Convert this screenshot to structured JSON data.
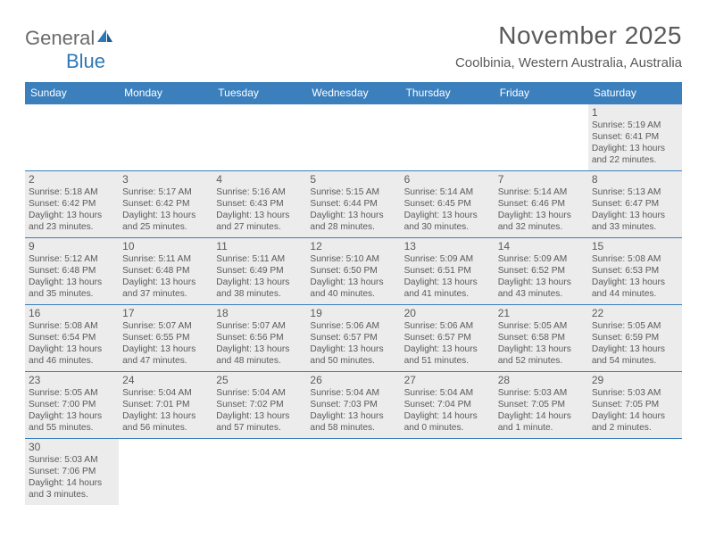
{
  "logo": {
    "general": "General",
    "blue": "Blue"
  },
  "title": "November 2025",
  "location": "Coolbinia, Western Australia, Australia",
  "colors": {
    "header_bg": "#3b7fbd",
    "header_text": "#ffffff",
    "body_text": "#5a5a5a",
    "shaded_bg": "#ececec",
    "rule": "#3b7fbd",
    "logo_gray": "#6a6a6a",
    "logo_blue": "#2f78b7"
  },
  "weekdays": [
    "Sunday",
    "Monday",
    "Tuesday",
    "Wednesday",
    "Thursday",
    "Friday",
    "Saturday"
  ],
  "weeks": [
    [
      null,
      null,
      null,
      null,
      null,
      null,
      {
        "n": "1",
        "sr": "Sunrise: 5:19 AM",
        "ss": "Sunset: 6:41 PM",
        "d1": "Daylight: 13 hours",
        "d2": "and 22 minutes."
      }
    ],
    [
      {
        "n": "2",
        "sr": "Sunrise: 5:18 AM",
        "ss": "Sunset: 6:42 PM",
        "d1": "Daylight: 13 hours",
        "d2": "and 23 minutes."
      },
      {
        "n": "3",
        "sr": "Sunrise: 5:17 AM",
        "ss": "Sunset: 6:42 PM",
        "d1": "Daylight: 13 hours",
        "d2": "and 25 minutes."
      },
      {
        "n": "4",
        "sr": "Sunrise: 5:16 AM",
        "ss": "Sunset: 6:43 PM",
        "d1": "Daylight: 13 hours",
        "d2": "and 27 minutes."
      },
      {
        "n": "5",
        "sr": "Sunrise: 5:15 AM",
        "ss": "Sunset: 6:44 PM",
        "d1": "Daylight: 13 hours",
        "d2": "and 28 minutes."
      },
      {
        "n": "6",
        "sr": "Sunrise: 5:14 AM",
        "ss": "Sunset: 6:45 PM",
        "d1": "Daylight: 13 hours",
        "d2": "and 30 minutes."
      },
      {
        "n": "7",
        "sr": "Sunrise: 5:14 AM",
        "ss": "Sunset: 6:46 PM",
        "d1": "Daylight: 13 hours",
        "d2": "and 32 minutes."
      },
      {
        "n": "8",
        "sr": "Sunrise: 5:13 AM",
        "ss": "Sunset: 6:47 PM",
        "d1": "Daylight: 13 hours",
        "d2": "and 33 minutes."
      }
    ],
    [
      {
        "n": "9",
        "sr": "Sunrise: 5:12 AM",
        "ss": "Sunset: 6:48 PM",
        "d1": "Daylight: 13 hours",
        "d2": "and 35 minutes."
      },
      {
        "n": "10",
        "sr": "Sunrise: 5:11 AM",
        "ss": "Sunset: 6:48 PM",
        "d1": "Daylight: 13 hours",
        "d2": "and 37 minutes."
      },
      {
        "n": "11",
        "sr": "Sunrise: 5:11 AM",
        "ss": "Sunset: 6:49 PM",
        "d1": "Daylight: 13 hours",
        "d2": "and 38 minutes."
      },
      {
        "n": "12",
        "sr": "Sunrise: 5:10 AM",
        "ss": "Sunset: 6:50 PM",
        "d1": "Daylight: 13 hours",
        "d2": "and 40 minutes."
      },
      {
        "n": "13",
        "sr": "Sunrise: 5:09 AM",
        "ss": "Sunset: 6:51 PM",
        "d1": "Daylight: 13 hours",
        "d2": "and 41 minutes."
      },
      {
        "n": "14",
        "sr": "Sunrise: 5:09 AM",
        "ss": "Sunset: 6:52 PM",
        "d1": "Daylight: 13 hours",
        "d2": "and 43 minutes."
      },
      {
        "n": "15",
        "sr": "Sunrise: 5:08 AM",
        "ss": "Sunset: 6:53 PM",
        "d1": "Daylight: 13 hours",
        "d2": "and 44 minutes."
      }
    ],
    [
      {
        "n": "16",
        "sr": "Sunrise: 5:08 AM",
        "ss": "Sunset: 6:54 PM",
        "d1": "Daylight: 13 hours",
        "d2": "and 46 minutes."
      },
      {
        "n": "17",
        "sr": "Sunrise: 5:07 AM",
        "ss": "Sunset: 6:55 PM",
        "d1": "Daylight: 13 hours",
        "d2": "and 47 minutes."
      },
      {
        "n": "18",
        "sr": "Sunrise: 5:07 AM",
        "ss": "Sunset: 6:56 PM",
        "d1": "Daylight: 13 hours",
        "d2": "and 48 minutes."
      },
      {
        "n": "19",
        "sr": "Sunrise: 5:06 AM",
        "ss": "Sunset: 6:57 PM",
        "d1": "Daylight: 13 hours",
        "d2": "and 50 minutes."
      },
      {
        "n": "20",
        "sr": "Sunrise: 5:06 AM",
        "ss": "Sunset: 6:57 PM",
        "d1": "Daylight: 13 hours",
        "d2": "and 51 minutes."
      },
      {
        "n": "21",
        "sr": "Sunrise: 5:05 AM",
        "ss": "Sunset: 6:58 PM",
        "d1": "Daylight: 13 hours",
        "d2": "and 52 minutes."
      },
      {
        "n": "22",
        "sr": "Sunrise: 5:05 AM",
        "ss": "Sunset: 6:59 PM",
        "d1": "Daylight: 13 hours",
        "d2": "and 54 minutes."
      }
    ],
    [
      {
        "n": "23",
        "sr": "Sunrise: 5:05 AM",
        "ss": "Sunset: 7:00 PM",
        "d1": "Daylight: 13 hours",
        "d2": "and 55 minutes."
      },
      {
        "n": "24",
        "sr": "Sunrise: 5:04 AM",
        "ss": "Sunset: 7:01 PM",
        "d1": "Daylight: 13 hours",
        "d2": "and 56 minutes."
      },
      {
        "n": "25",
        "sr": "Sunrise: 5:04 AM",
        "ss": "Sunset: 7:02 PM",
        "d1": "Daylight: 13 hours",
        "d2": "and 57 minutes."
      },
      {
        "n": "26",
        "sr": "Sunrise: 5:04 AM",
        "ss": "Sunset: 7:03 PM",
        "d1": "Daylight: 13 hours",
        "d2": "and 58 minutes."
      },
      {
        "n": "27",
        "sr": "Sunrise: 5:04 AM",
        "ss": "Sunset: 7:04 PM",
        "d1": "Daylight: 14 hours",
        "d2": "and 0 minutes."
      },
      {
        "n": "28",
        "sr": "Sunrise: 5:03 AM",
        "ss": "Sunset: 7:05 PM",
        "d1": "Daylight: 14 hours",
        "d2": "and 1 minute."
      },
      {
        "n": "29",
        "sr": "Sunrise: 5:03 AM",
        "ss": "Sunset: 7:05 PM",
        "d1": "Daylight: 14 hours",
        "d2": "and 2 minutes."
      }
    ],
    [
      {
        "n": "30",
        "sr": "Sunrise: 5:03 AM",
        "ss": "Sunset: 7:06 PM",
        "d1": "Daylight: 14 hours",
        "d2": "and 3 minutes."
      },
      null,
      null,
      null,
      null,
      null,
      null
    ]
  ]
}
